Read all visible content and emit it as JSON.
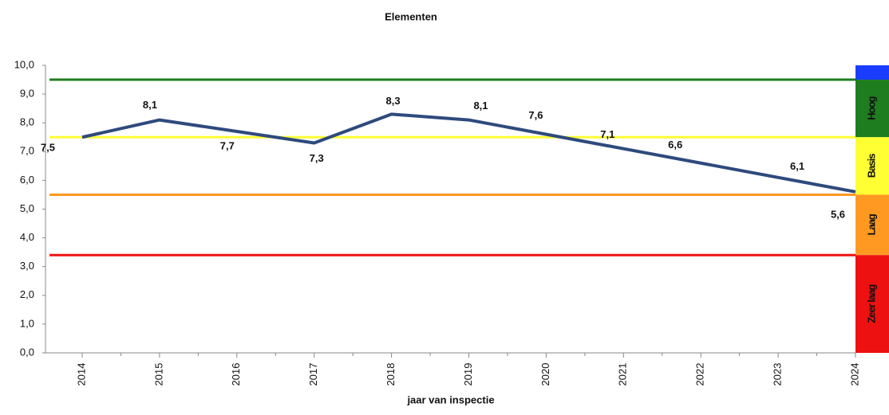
{
  "chart_data": {
    "type": "line",
    "title": "Elementen",
    "x_label": "jaar van inspectie",
    "categories": [
      "2014",
      "2015",
      "2016",
      "2017",
      "2018",
      "2019",
      "2020",
      "2021",
      "2022",
      "2023",
      "2024"
    ],
    "series": [
      {
        "name": "Elementen",
        "color": "#2e4a7d",
        "values": [
          7.5,
          8.1,
          7.7,
          7.3,
          8.3,
          8.1,
          7.6,
          7.1,
          6.6,
          6.1,
          5.6
        ],
        "value_labels": [
          "7,5",
          "8,1",
          "7,7",
          "7,3",
          "8,3",
          "8,1",
          "7,6",
          "7,1",
          "6,6",
          "6,1",
          "5,6"
        ]
      }
    ],
    "ylim": [
      0,
      10
    ],
    "yticks": [
      {
        "value": 0,
        "label": "0,0"
      },
      {
        "value": 1,
        "label": "1,0"
      },
      {
        "value": 2,
        "label": "2,0"
      },
      {
        "value": 3,
        "label": "3,0"
      },
      {
        "value": 4,
        "label": "4,0"
      },
      {
        "value": 5,
        "label": "5,0"
      },
      {
        "value": 6,
        "label": "6,0"
      },
      {
        "value": 7,
        "label": "7,0"
      },
      {
        "value": 8,
        "label": "8,0"
      },
      {
        "value": 9,
        "label": "9,0"
      },
      {
        "value": 10,
        "label": "10,0"
      }
    ],
    "reference_lines": [
      {
        "value": 9.5,
        "color": "#1e7d1e"
      },
      {
        "value": 7.5,
        "color": "#ffff33"
      },
      {
        "value": 5.5,
        "color": "#ff9922"
      },
      {
        "value": 3.4,
        "color": "#ee1111"
      }
    ],
    "zones": [
      {
        "from": 9.5,
        "to": 10,
        "color": "#1a3cff"
      },
      {
        "from": 7.5,
        "to": 9.5,
        "color": "#1e7d1e",
        "label": "Hoog"
      },
      {
        "from": 5.5,
        "to": 7.5,
        "color": "#ffff33",
        "label": "Basis"
      },
      {
        "from": 3.4,
        "to": 5.5,
        "color": "#ff9922",
        "label": "Laag"
      },
      {
        "from": 0,
        "to": 3.4,
        "color": "#ee1111",
        "label": "Zeer laag"
      }
    ]
  }
}
